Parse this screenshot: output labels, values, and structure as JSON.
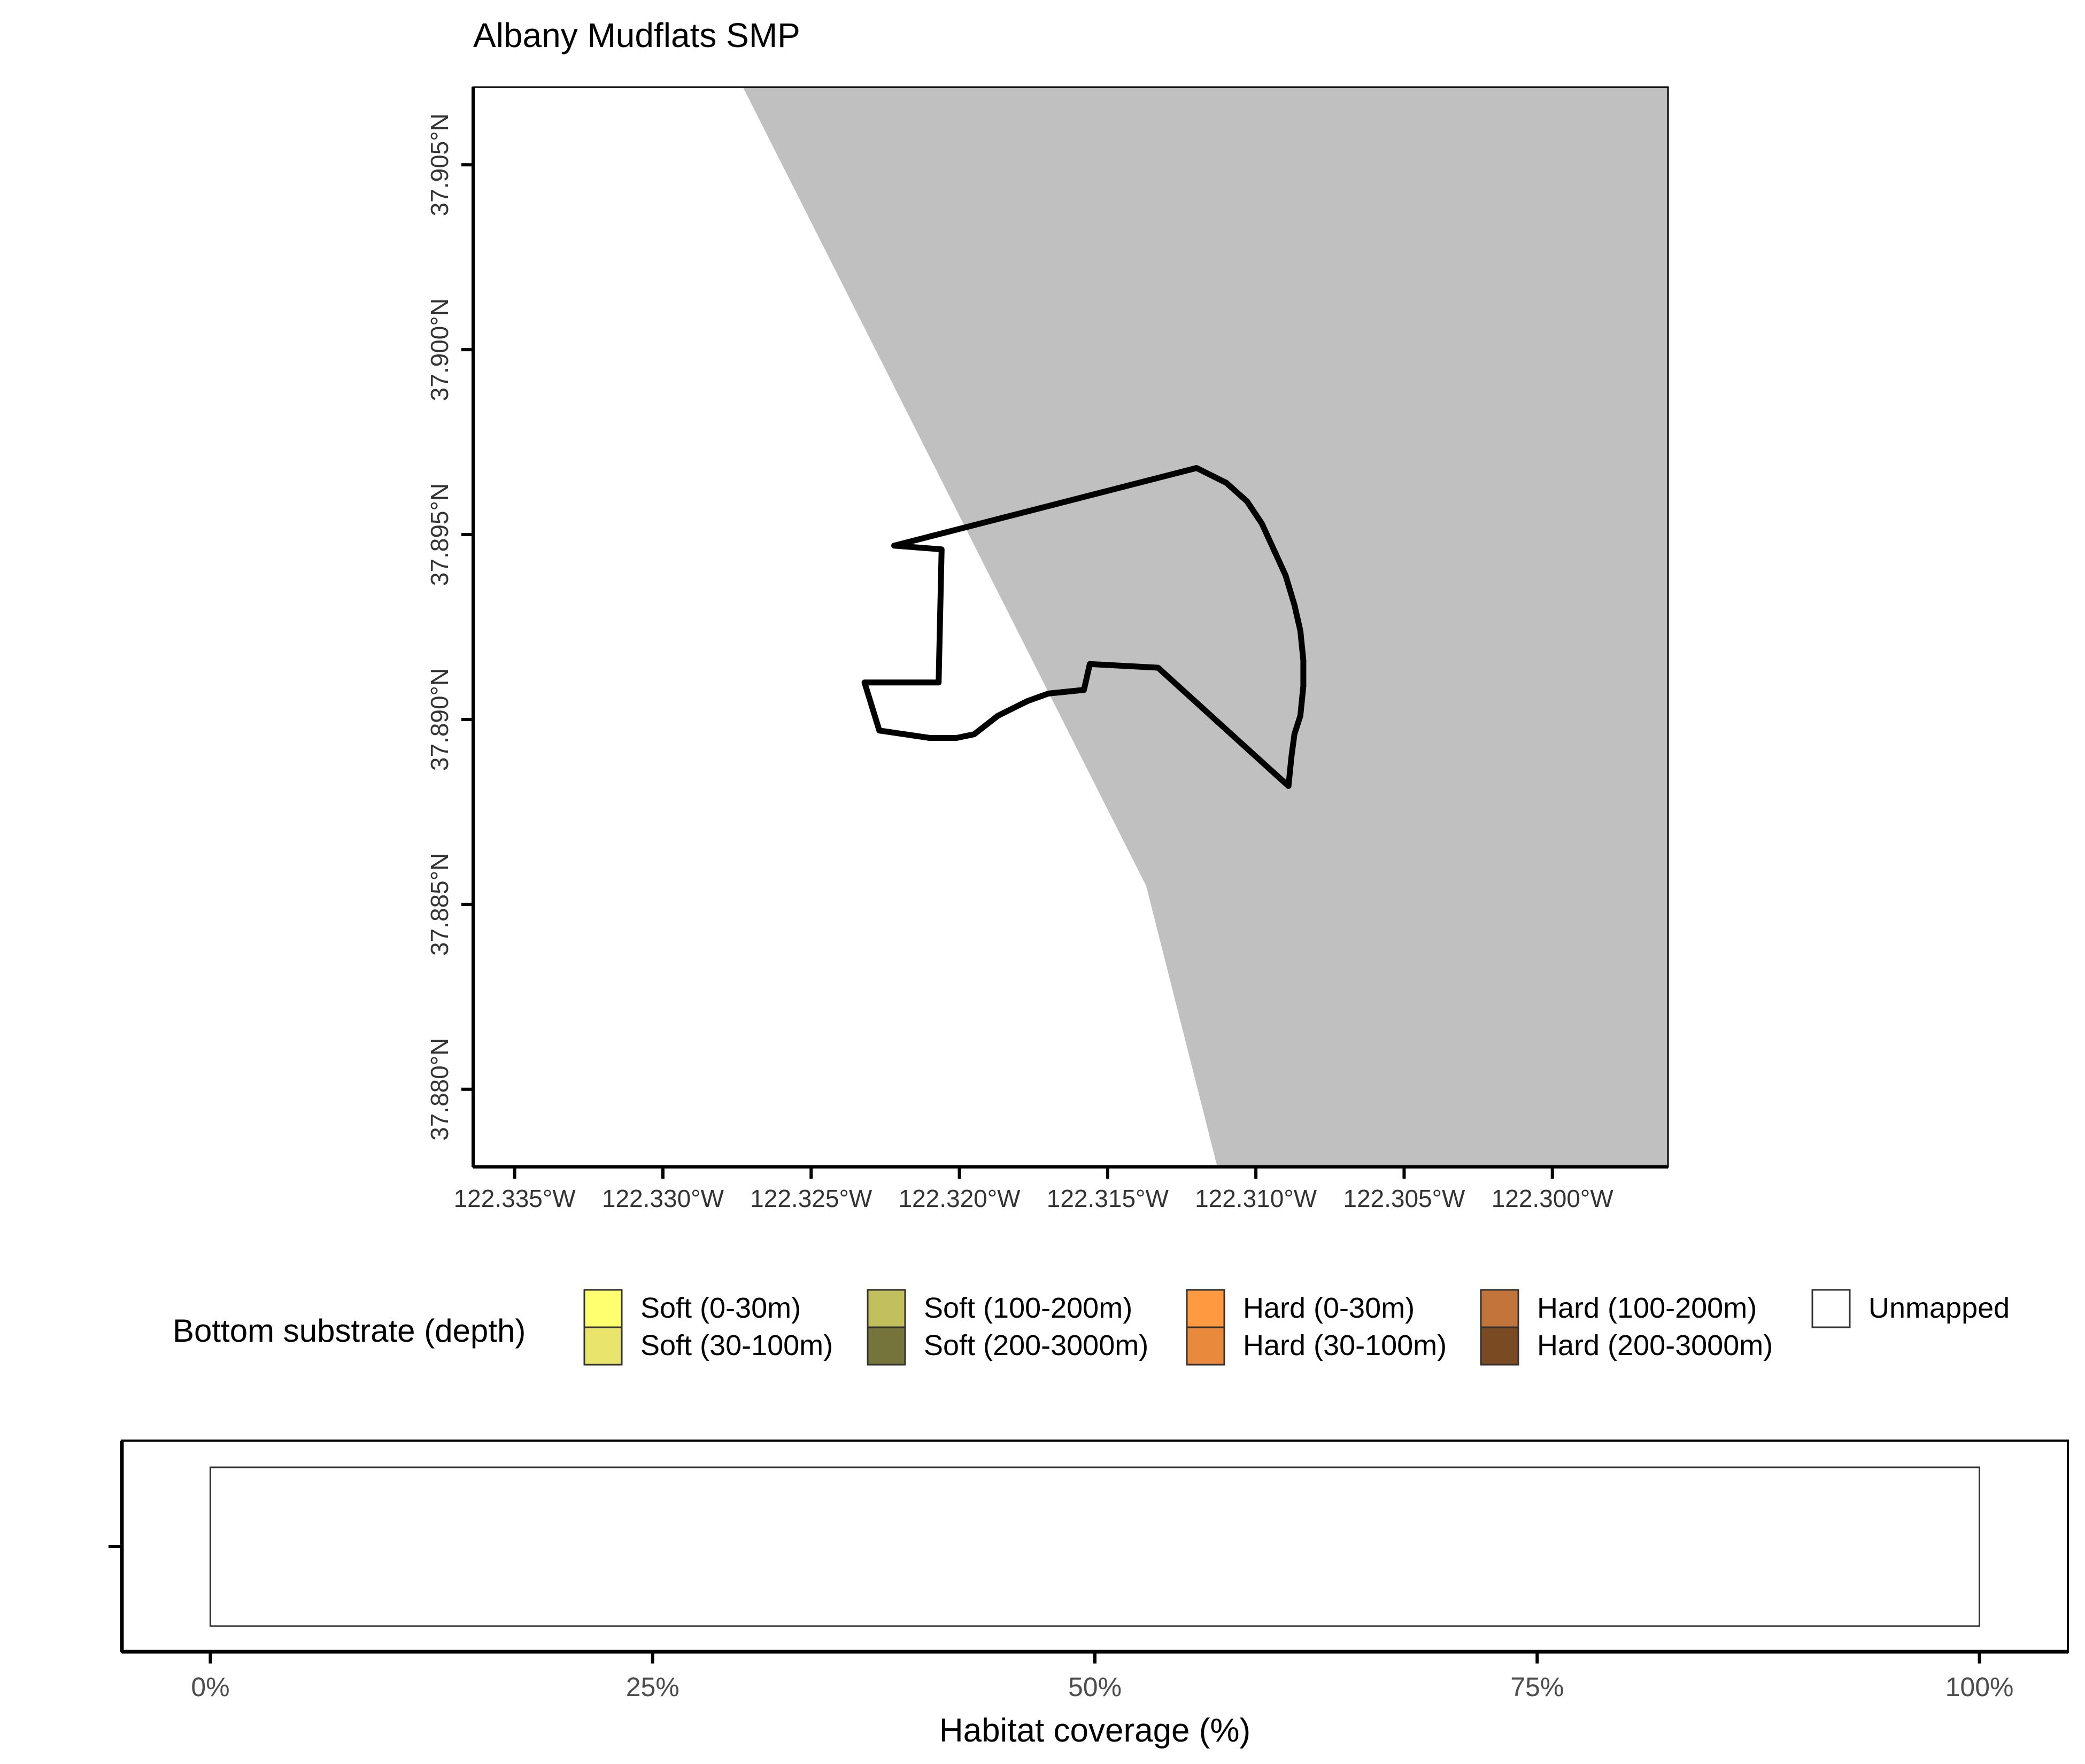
{
  "map": {
    "title": "Albany Mudflats SMP",
    "x_ticks": [
      "122.335°W",
      "122.330°W",
      "122.325°W",
      "122.320°W",
      "122.315°W",
      "122.310°W",
      "122.305°W",
      "122.300°W"
    ],
    "y_ticks": [
      "37.905°N",
      "37.900°N",
      "37.895°N",
      "37.890°N",
      "37.885°N",
      "37.880°N"
    ],
    "x_range_lon": [
      -122.3364,
      -122.2961
    ],
    "y_range_lat": [
      37.8779,
      37.9071
    ],
    "land_color": "#c0c0c0",
    "water_color": "#ffffff",
    "land_boundary": [
      [
        -122.3273,
        37.9071
      ],
      [
        -122.3137,
        37.8855
      ],
      [
        -122.3113,
        37.8779
      ]
    ],
    "smp_outline": [
      [
        -122.312,
        37.8968
      ],
      [
        -122.311,
        37.8964
      ],
      [
        -122.3103,
        37.8959
      ],
      [
        -122.3098,
        37.8953
      ],
      [
        -122.3094,
        37.8946
      ],
      [
        -122.309,
        37.8939
      ],
      [
        -122.3087,
        37.8931
      ],
      [
        -122.3085,
        37.8924
      ],
      [
        -122.3084,
        37.8916
      ],
      [
        -122.3084,
        37.8909
      ],
      [
        -122.3085,
        37.8901
      ],
      [
        -122.3087,
        37.8896
      ],
      [
        -122.3088,
        37.889
      ],
      [
        -122.3089,
        37.8882
      ],
      [
        -122.3133,
        37.8914
      ],
      [
        -122.3156,
        37.8915
      ],
      [
        -122.3158,
        37.8908
      ],
      [
        -122.317,
        37.8907
      ],
      [
        -122.3177,
        37.8905
      ],
      [
        -122.3187,
        37.8901
      ],
      [
        -122.3195,
        37.8896
      ],
      [
        -122.3201,
        37.8895
      ],
      [
        -122.321,
        37.8895
      ],
      [
        -122.3227,
        37.8897
      ],
      [
        -122.3232,
        37.891
      ],
      [
        -122.3207,
        37.891
      ],
      [
        -122.3206,
        37.8946
      ],
      [
        -122.3222,
        37.8947
      ],
      [
        -122.312,
        37.8968
      ]
    ]
  },
  "legend": {
    "title": "Bottom substrate (depth)",
    "items": [
      {
        "label": "Soft (0-30m)",
        "color": "#ffff70"
      },
      {
        "label": "Soft (30-100m)",
        "color": "#e8e46c"
      },
      {
        "label": "Soft (100-200m)",
        "color": "#c2c05c"
      },
      {
        "label": "Soft (200-3000m)",
        "color": "#75743a"
      },
      {
        "label": "Hard (0-30m)",
        "color": "#ff9a40"
      },
      {
        "label": "Hard (30-100m)",
        "color": "#e8893c"
      },
      {
        "label": "Hard (100-200m)",
        "color": "#c3743a"
      },
      {
        "label": "Hard (200-3000m)",
        "color": "#7a4a22"
      },
      {
        "label": "Unmapped",
        "color": "#ffffff"
      }
    ]
  },
  "chart_data": {
    "type": "bar",
    "orientation": "horizontal",
    "stacked": true,
    "series": [
      {
        "name": "Unmapped",
        "values": [
          100
        ],
        "color": "#ffffff"
      }
    ],
    "xlabel": "Habitat coverage (%)",
    "ylabel": "",
    "x_ticks": [
      "0%",
      "25%",
      "50%",
      "75%",
      "100%"
    ],
    "xlim": [
      -5,
      105
    ]
  }
}
